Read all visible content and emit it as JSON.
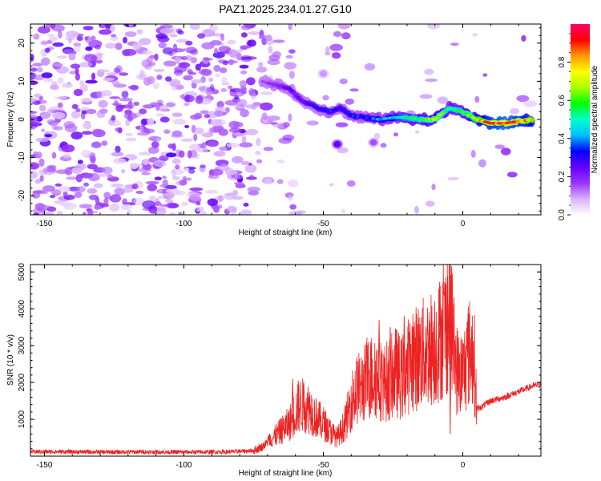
{
  "chart_data": [
    {
      "type": "heatmap",
      "title": "PAZ1.2025.234.01.27.G10",
      "xlabel": "Height of straight line (km)",
      "ylabel": "Frequency (Hz)",
      "xlim": [
        -155,
        28
      ],
      "ylim": [
        -25,
        25
      ],
      "x_ticks": [
        -150,
        -100,
        -50,
        0
      ],
      "x_tick_labels": [
        "-150",
        "-100",
        "-50",
        "0"
      ],
      "y_ticks": [
        -20,
        -10,
        0,
        10,
        20
      ],
      "y_tick_labels": [
        "-20",
        "-10",
        "0",
        "10",
        "20"
      ],
      "colorbar": {
        "label": "Normalized spectral amplitude",
        "range": [
          0,
          1
        ],
        "ticks": [
          0,
          0.2,
          0.4,
          0.6,
          0.8
        ],
        "tick_labels": [
          "0.0",
          "0.2",
          "0.4",
          "0.6",
          "0.8"
        ],
        "colors": [
          "#ffffff",
          "#d9b3ff",
          "#9933ff",
          "#6600ff",
          "#0000ff",
          "#00bfff",
          "#00ffcc",
          "#00ff00",
          "#aaff00",
          "#ffff00",
          "#ff9900",
          "#ff0000",
          "#ff0066"
        ]
      },
      "ridge": [
        {
          "x": -72,
          "y": 10,
          "v": 0.15
        },
        {
          "x": -67,
          "y": 9,
          "v": 0.2
        },
        {
          "x": -62,
          "y": 8,
          "v": 0.25
        },
        {
          "x": -58,
          "y": 5,
          "v": 0.25
        },
        {
          "x": -55,
          "y": 4,
          "v": 0.3
        },
        {
          "x": -52,
          "y": 3,
          "v": 0.3
        },
        {
          "x": -48,
          "y": 2,
          "v": 0.35
        },
        {
          "x": -44,
          "y": 3,
          "v": 0.3
        },
        {
          "x": -40,
          "y": 1,
          "v": 0.35
        },
        {
          "x": -35,
          "y": 0.5,
          "v": 0.35
        },
        {
          "x": -30,
          "y": 0,
          "v": 0.4
        },
        {
          "x": -25,
          "y": 0.5,
          "v": 0.45
        },
        {
          "x": -20,
          "y": 0.5,
          "v": 0.55
        },
        {
          "x": -15,
          "y": 0,
          "v": 0.6
        },
        {
          "x": -10,
          "y": 0,
          "v": 0.7
        },
        {
          "x": -5,
          "y": 3,
          "v": 0.55
        },
        {
          "x": 0,
          "y": 2,
          "v": 0.6
        },
        {
          "x": 5,
          "y": 0,
          "v": 0.75
        },
        {
          "x": 10,
          "y": -1,
          "v": 0.9
        },
        {
          "x": 15,
          "y": -1,
          "v": 0.95
        },
        {
          "x": 20,
          "y": -0.5,
          "v": 0.9
        },
        {
          "x": 25,
          "y": 0,
          "v": 0.8
        }
      ],
      "blobs": [
        {
          "x": -45,
          "y": -6.5,
          "v": 0.25
        },
        {
          "x": -32,
          "y": -6,
          "v": 0.15
        },
        {
          "x": -50,
          "y": 12,
          "v": 0.1
        }
      ]
    },
    {
      "type": "line",
      "xlabel": "Height of straight line (km)",
      "ylabel": "SNR (10 * v/v)",
      "xlim": [
        -155,
        28
      ],
      "ylim": [
        0,
        5200
      ],
      "x_ticks": [
        -150,
        -100,
        -50,
        0
      ],
      "x_tick_labels": [
        "-150",
        "-100",
        "-50",
        "0"
      ],
      "y_ticks": [
        1000,
        2000,
        3000,
        4000,
        5000
      ],
      "y_tick_labels": [
        "1000",
        "2000",
        "3000",
        "4000",
        "5000"
      ],
      "series": [
        {
          "name": "SNR",
          "color": "#ee2222",
          "x": [
            -155,
            -145,
            -135,
            -125,
            -115,
            -105,
            -95,
            -85,
            -75,
            -72,
            -68,
            -65,
            -62,
            -60,
            -58,
            -55,
            -52,
            -50,
            -48,
            -45,
            -42,
            -40,
            -38,
            -36,
            -34,
            -32,
            -30,
            -28,
            -26,
            -24,
            -22,
            -20,
            -18,
            -16,
            -14,
            -12,
            -10,
            -8,
            -6,
            -5,
            -4,
            -2,
            0,
            2,
            4,
            5,
            6,
            10,
            15,
            20,
            25,
            28
          ],
          "y": [
            120,
            120,
            115,
            110,
            115,
            110,
            110,
            115,
            150,
            250,
            500,
            700,
            900,
            1200,
            1400,
            1300,
            1000,
            900,
            700,
            500,
            900,
            1500,
            1800,
            1900,
            2100,
            2200,
            2100,
            2000,
            2100,
            2300,
            2100,
            2400,
            2600,
            2700,
            2800,
            2900,
            3000,
            3200,
            3500,
            3900,
            3300,
            2300,
            2200,
            2800,
            2800,
            1300,
            1300,
            1500,
            1600,
            1750,
            1900,
            1950
          ]
        }
      ],
      "spikes": [
        {
          "x": -61,
          "y": 2100
        },
        {
          "x": -59,
          "y": 2050
        },
        {
          "x": -57,
          "y": 2000
        },
        {
          "x": -33,
          "y": 3100
        },
        {
          "x": -30,
          "y": 3700
        },
        {
          "x": -26,
          "y": 3500
        },
        {
          "x": -21,
          "y": 3800
        },
        {
          "x": -12,
          "y": 3700
        },
        {
          "x": -8,
          "y": 3850
        },
        {
          "x": -4,
          "y": 5150
        },
        {
          "x": -4.5,
          "y": 600
        },
        {
          "x": 2,
          "y": 3300
        },
        {
          "x": -6,
          "y": 4600
        }
      ]
    }
  ]
}
